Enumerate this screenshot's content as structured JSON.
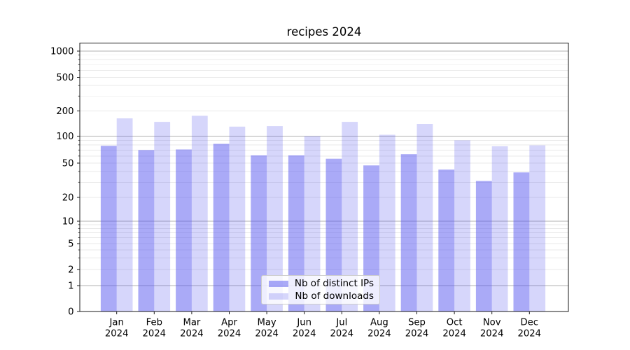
{
  "chart_data": {
    "type": "bar",
    "title": "recipes 2024",
    "categories": [
      "Jan",
      "Feb",
      "Mar",
      "Apr",
      "May",
      "Jun",
      "Jul",
      "Aug",
      "Sep",
      "Oct",
      "Nov",
      "Dec"
    ],
    "year_label": "2024",
    "series": [
      {
        "name": "Nb of distinct IPs",
        "color": "rgba(85,85,240,0.5)",
        "values": [
          78,
          70,
          71,
          82,
          61,
          61,
          56,
          47,
          63,
          42,
          31,
          39
        ]
      },
      {
        "name": "Nb of downloads",
        "color": "rgba(85,85,240,0.24)",
        "values": [
          163,
          148,
          175,
          130,
          132,
          100,
          148,
          104,
          140,
          90,
          77,
          79
        ]
      }
    ],
    "yscale": "symlog",
    "y_ticks": [
      0,
      1,
      2,
      5,
      10,
      20,
      50,
      100,
      200,
      500,
      1000
    ],
    "ylim": [
      0,
      1180
    ],
    "xlabel": "",
    "ylabel": "",
    "grid": true,
    "legend_position": "lower center",
    "colors": {
      "major_grid": "#b0b0b0",
      "minor_grid": "#e8e8e8",
      "axis": "#1a1a1a",
      "text": "#000000",
      "background": "#ffffff"
    }
  }
}
